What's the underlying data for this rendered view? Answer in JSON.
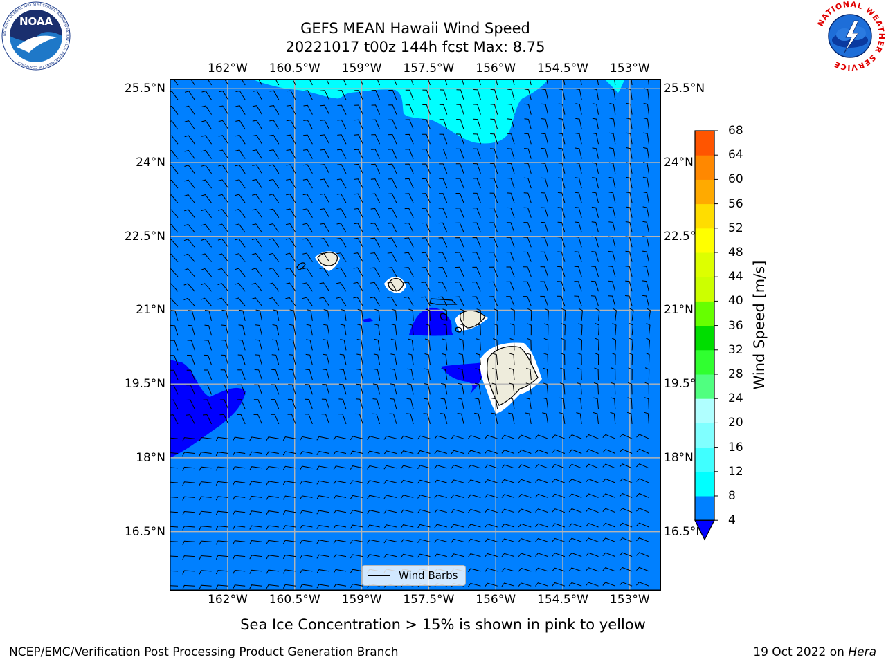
{
  "title": {
    "line1": "GEFS MEAN Hawaii Wind Speed",
    "line2": "20221017 t00z 144h fcst   Max: 8.75"
  },
  "map": {
    "lon_range": [
      -163.3,
      -152.3
    ],
    "lat_range": [
      15.3,
      25.7
    ],
    "lon_ticks": [
      {
        "value": -162.0,
        "label": "162°W"
      },
      {
        "value": -160.5,
        "label": "160.5°W"
      },
      {
        "value": -159.0,
        "label": "159°W"
      },
      {
        "value": -157.5,
        "label": "157.5°W"
      },
      {
        "value": -156.0,
        "label": "156°W"
      },
      {
        "value": -154.5,
        "label": "154.5°W"
      },
      {
        "value": -153.0,
        "label": "153°W"
      }
    ],
    "lat_ticks": [
      {
        "value": 25.5,
        "label": "25.5°N"
      },
      {
        "value": 24.0,
        "label": "24°N"
      },
      {
        "value": 22.5,
        "label": "22.5°N"
      },
      {
        "value": 21.0,
        "label": "21°N"
      },
      {
        "value": 19.5,
        "label": "19.5°N"
      },
      {
        "value": 18.0,
        "label": "18°N"
      },
      {
        "value": 16.5,
        "label": "16.5°N"
      }
    ],
    "background_color": "#0080ff",
    "grid": true,
    "legend": {
      "label": "Wind Barbs",
      "placement": "bottom-center"
    }
  },
  "colorbar": {
    "label": "Wind Speed [m/s]",
    "ticks": [
      4,
      8,
      12,
      16,
      20,
      24,
      28,
      32,
      36,
      40,
      44,
      48,
      52,
      56,
      60,
      64,
      68
    ],
    "colors": [
      "#0080ff",
      "#00ffff",
      "#40ffff",
      "#80ffff",
      "#b0ffff",
      "#50ff80",
      "#30ff30",
      "#00dd00",
      "#66ff00",
      "#ccff00",
      "#ddff00",
      "#ffff00",
      "#ffdd00",
      "#ffaa00",
      "#ff8800",
      "#ff5500",
      "#ff2200",
      "#ff0000"
    ],
    "extend_color": "#0000ff"
  },
  "note": "Sea Ice Concentration > 15% is shown in pink to yellow",
  "footer": {
    "left": "NCEP/EMC/Verification Post Processing Product Generation Branch",
    "right_date": "19 Oct 2022 on ",
    "right_host": "Hera"
  },
  "logos": {
    "left": {
      "text": "NOAA",
      "ring_text": "NATIONAL OCEANIC AND ATMOSPHERIC ADMINISTRATION · U.S. DEPARTMENT OF COMMERCE"
    },
    "right": {
      "ring_text": "NATIONAL WEATHER SERVICE"
    }
  }
}
